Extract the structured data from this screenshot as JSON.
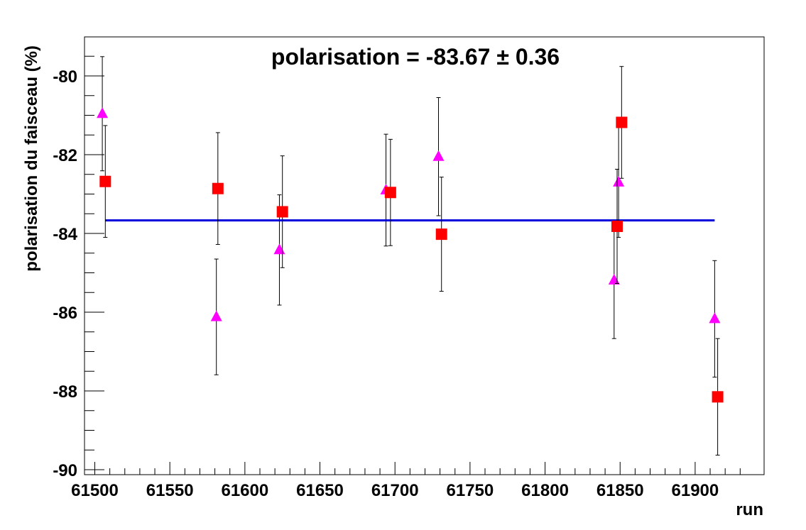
{
  "chart_data": {
    "type": "scatter",
    "title": "polarisation = -83.67  ± 0.36",
    "xlabel": "run",
    "ylabel": "polarisation du faisceau (%)",
    "xlim": [
      61485,
      61940
    ],
    "ylim": [
      -90.1,
      -79.0
    ],
    "x_ticks": [
      "61500",
      "61550",
      "61600",
      "61650",
      "61700",
      "61750",
      "61800",
      "61850",
      "61900"
    ],
    "y_ticks": [
      "-80",
      "-82",
      "-84",
      "-86",
      "-88",
      "-90"
    ],
    "grid": false,
    "fit_line": {
      "x": [
        61507,
        61913
      ],
      "y": -83.67,
      "color": "#0000dd"
    },
    "series": [
      {
        "marker": "triangle",
        "color": "#ff00ff",
        "points": [
          {
            "x": 61505,
            "y": -80.96,
            "err": 1.45
          },
          {
            "x": 61581,
            "y": -86.12,
            "err": 1.47
          },
          {
            "x": 61623,
            "y": -84.42,
            "err": 1.4
          },
          {
            "x": 61694,
            "y": -82.9,
            "err": 1.42
          },
          {
            "x": 61729,
            "y": -82.05,
            "err": 1.5
          },
          {
            "x": 61846,
            "y": -85.19,
            "err": 1.48
          },
          {
            "x": 61849,
            "y": -82.7,
            "err": 1.4
          },
          {
            "x": 61913,
            "y": -86.17,
            "err": 1.48
          }
        ]
      },
      {
        "marker": "square",
        "color": "#ff0000",
        "points": [
          {
            "x": 61507,
            "y": -82.68,
            "err": 1.42
          },
          {
            "x": 61582,
            "y": -82.86,
            "err": 1.42
          },
          {
            "x": 61625,
            "y": -83.45,
            "err": 1.42
          },
          {
            "x": 61697,
            "y": -82.96,
            "err": 1.35
          },
          {
            "x": 61731,
            "y": -84.02,
            "err": 1.45
          },
          {
            "x": 61848,
            "y": -83.82,
            "err": 1.45
          },
          {
            "x": 61851,
            "y": -81.18,
            "err": 1.42
          },
          {
            "x": 61915,
            "y": -88.15,
            "err": 1.48
          }
        ]
      }
    ]
  }
}
